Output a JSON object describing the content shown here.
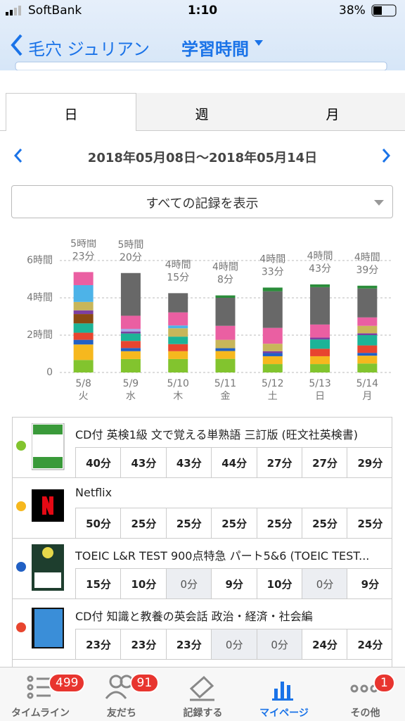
{
  "status_bar": {
    "carrier": "SoftBank",
    "time": "1:10",
    "battery": "38%"
  },
  "header": {
    "back": "毛穴 ジュリアン",
    "title": "学習時間"
  },
  "tabs": [
    "日",
    "週",
    "月"
  ],
  "date_range": "2018年05月08日〜2018年05月14日",
  "filter": "すべての記録を表示",
  "chart_data": {
    "type": "stacked-bar",
    "categories": [
      "5/8",
      "5/9",
      "5/10",
      "5/11",
      "5/12",
      "5/13",
      "5/14"
    ],
    "weekdays": [
      "火",
      "水",
      "木",
      "金",
      "土",
      "日",
      "月"
    ],
    "total_labels": [
      [
        "5時間",
        "23分"
      ],
      [
        "5時間",
        "20分"
      ],
      [
        "4時間",
        "15分"
      ],
      [
        "4時間",
        "8分"
      ],
      [
        "4時間",
        "33分"
      ],
      [
        "4時間",
        "43分"
      ],
      [
        "4時間",
        "39分"
      ]
    ],
    "ylim": [
      0,
      6
    ],
    "yticks": [
      0,
      {
        "value": 2,
        "label": "2時間"
      },
      {
        "value": 4,
        "label": "4時間"
      },
      {
        "value": 6,
        "label": "6時間"
      }
    ],
    "grid": true,
    "series": [
      {
        "color": "#82c42e",
        "values": [
          0.67,
          0.72,
          0.72,
          0.73,
          0.45,
          0.45,
          0.48
        ]
      },
      {
        "color": "#f6b81e",
        "values": [
          0.83,
          0.42,
          0.42,
          0.42,
          0.42,
          0.42,
          0.42
        ]
      },
      {
        "color": "#2160c4",
        "values": [
          0.25,
          0.17,
          0,
          0.15,
          0.17,
          0,
          0.15
        ]
      },
      {
        "color": "#e8452f",
        "values": [
          0.38,
          0.38,
          0.38,
          0,
          0,
          0.4,
          0.4
        ]
      },
      {
        "color": "#1db497",
        "values": [
          0.5,
          0.4,
          0.4,
          0,
          0,
          0.5,
          0.55
        ]
      },
      {
        "color": "#8a4a12",
        "values": [
          0.5,
          0,
          0,
          0,
          0,
          0,
          0
        ]
      },
      {
        "color": "#7d3fa0",
        "values": [
          0.2,
          0.1,
          0,
          0,
          0.1,
          0.1,
          0.1
        ]
      },
      {
        "color": "#c8b65a",
        "values": [
          0.45,
          0,
          0.45,
          0.45,
          0.4,
          0,
          0.4
        ]
      },
      {
        "color": "#a9a6e6",
        "values": [
          0,
          0.15,
          0,
          0,
          0,
          0,
          0
        ]
      },
      {
        "color": "#4db3e8",
        "values": [
          0.9,
          0,
          0.15,
          0,
          0,
          0,
          0
        ]
      },
      {
        "color": "#ea5fa2",
        "values": [
          0.7,
          0.7,
          0.7,
          0.75,
          0.85,
          0.7,
          0.45
        ]
      },
      {
        "color": "#686868",
        "values": [
          0,
          2.29,
          1.03,
          1.5,
          1.96,
          2.0,
          1.55
        ]
      },
      {
        "color": "#2a8c3a",
        "values": [
          0,
          0,
          0,
          0.13,
          0.2,
          0.15,
          0.15
        ]
      }
    ]
  },
  "records": [
    {
      "title": "CD付 英検1級 文で覚える単熟語 三訂版 (旺文社英検書)",
      "dot": "#82c42e",
      "icon": "book-green",
      "cells": [
        "40分",
        "43分",
        "43分",
        "44分",
        "27分",
        "27分",
        "29分"
      ]
    },
    {
      "title": "Netflix",
      "dot": "#f6b81e",
      "icon": "netflix",
      "cells": [
        "50分",
        "25分",
        "25分",
        "25分",
        "25分",
        "25分",
        "25分"
      ]
    },
    {
      "title": "TOEIC L&R TEST 900点特急 パート5&6 (TOEIC TEST...",
      "dot": "#2160c4",
      "icon": "book-toeic",
      "cells": [
        "15分",
        "10分",
        "0分",
        "9分",
        "10分",
        "0分",
        "9分"
      ]
    },
    {
      "title": "CD付 知識と教養の英会話 政治・経済・社会編",
      "dot": "#e8452f",
      "icon": "book-blue",
      "cells": [
        "23分",
        "23分",
        "23分",
        "0分",
        "0分",
        "24分",
        "24分"
      ]
    }
  ],
  "tab_bar": [
    {
      "label": "タイムライン",
      "badge": "499"
    },
    {
      "label": "友だち",
      "badge": "91"
    },
    {
      "label": "記録する"
    },
    {
      "label": "マイページ"
    },
    {
      "label": "その他",
      "badge": "1"
    }
  ]
}
